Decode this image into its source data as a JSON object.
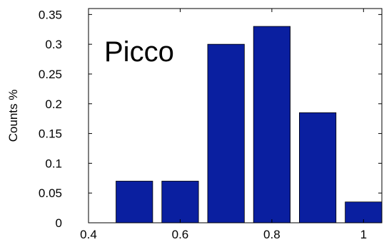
{
  "chart_data": {
    "type": "bar",
    "x": [
      0.5,
      0.6,
      0.7,
      0.8,
      0.9,
      1.0
    ],
    "values": [
      0.07,
      0.07,
      0.3,
      0.33,
      0.185,
      0.035
    ],
    "bar_width": 0.08,
    "xlim": [
      0.4,
      1.04
    ],
    "ylim": [
      0,
      0.36
    ],
    "xticks": [
      0.4,
      0.6,
      0.8,
      1.0
    ],
    "xtick_labels": [
      "0.4",
      "0.6",
      "0.8",
      "1"
    ],
    "yticks": [
      0,
      0.05,
      0.1,
      0.15,
      0.2,
      0.25,
      0.3,
      0.35
    ],
    "ytick_labels": [
      "0",
      "0.05",
      "0.1",
      "0.15",
      "0.2",
      "0.25",
      "0.3",
      "0.35"
    ],
    "ylabel": "Counts %",
    "xlabel": "",
    "annotation": "Picco",
    "bar_color": "#0a1fa0",
    "grid": false
  }
}
